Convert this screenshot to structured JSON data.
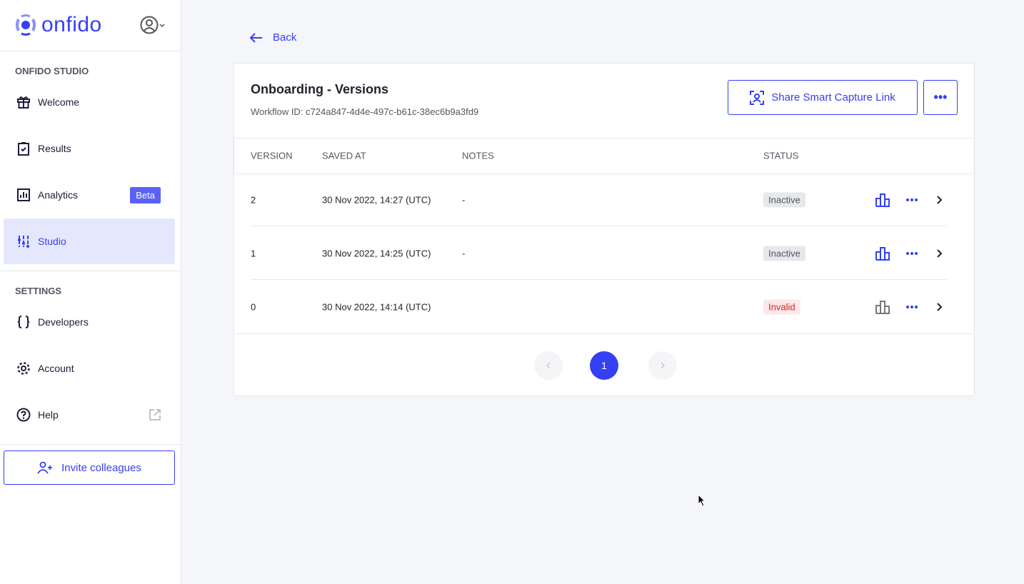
{
  "brand": {
    "name": "onfido",
    "accent": "#353ff4"
  },
  "sidebar": {
    "section1": "ONFIDO STUDIO",
    "items": [
      {
        "label": "Welcome",
        "icon": "gift-icon"
      },
      {
        "label": "Results",
        "icon": "clipboard-check-icon"
      },
      {
        "label": "Analytics",
        "icon": "bar-chart-icon",
        "badge": "Beta"
      },
      {
        "label": "Studio",
        "icon": "sliders-icon",
        "active": true
      }
    ],
    "section2": "SETTINGS",
    "settings": [
      {
        "label": "Developers",
        "icon": "braces-icon"
      },
      {
        "label": "Account",
        "icon": "gear-icon"
      },
      {
        "label": "Help",
        "icon": "help-icon"
      }
    ],
    "invite": "Invite colleagues"
  },
  "main": {
    "back": "Back",
    "title": "Onboarding - Versions",
    "workflow_id": "Workflow ID: c724a847-4d4e-497c-b61c-38ec6b9a3fd9",
    "share": "Share Smart Capture Link",
    "more": "•••",
    "columns": [
      "VERSION",
      "SAVED AT",
      "NOTES",
      "STATUS"
    ],
    "rows": [
      {
        "version": "2",
        "saved_at": "30 Nov 2022, 14:27 (UTC)",
        "notes": "-",
        "status": "Inactive"
      },
      {
        "version": "1",
        "saved_at": "30 Nov 2022, 14:25 (UTC)",
        "notes": "-",
        "status": "Inactive"
      },
      {
        "version": "0",
        "saved_at": "30 Nov 2022, 14:14 (UTC)",
        "notes": "",
        "status": "Invalid"
      }
    ],
    "pagination": {
      "current": "1"
    }
  }
}
